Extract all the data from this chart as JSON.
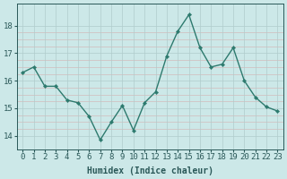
{
  "x": [
    0,
    1,
    2,
    3,
    4,
    5,
    6,
    7,
    8,
    9,
    10,
    11,
    12,
    13,
    14,
    15,
    16,
    17,
    18,
    19,
    20,
    21,
    22,
    23
  ],
  "y": [
    16.3,
    16.5,
    15.8,
    15.8,
    15.3,
    15.2,
    14.7,
    13.85,
    14.5,
    15.1,
    14.2,
    15.2,
    15.6,
    16.9,
    17.8,
    18.4,
    17.2,
    16.5,
    16.6,
    17.2,
    16.0,
    15.4,
    15.05,
    14.9
  ],
  "line_color": "#2d7a6e",
  "marker_color": "#2d7a6e",
  "bg_color": "#cce8e8",
  "grid_major_color": "#b0cccc",
  "grid_minor_color_h": "#e8c8c8",
  "grid_minor_color_v": "#b8d4d4",
  "xlabel": "Humidex (Indice chaleur)",
  "ylabel_ticks": [
    14,
    15,
    16,
    17,
    18
  ],
  "xlim": [
    -0.5,
    23.5
  ],
  "ylim": [
    13.5,
    18.8
  ],
  "xtick_labels": [
    "0",
    "1",
    "2",
    "3",
    "4",
    "5",
    "6",
    "7",
    "8",
    "9",
    "10",
    "11",
    "12",
    "13",
    "14",
    "15",
    "16",
    "17",
    "18",
    "19",
    "20",
    "21",
    "22",
    "23"
  ],
  "font_color": "#2a5858",
  "font_size_xlabel": 7,
  "font_size_ticks": 6.5
}
